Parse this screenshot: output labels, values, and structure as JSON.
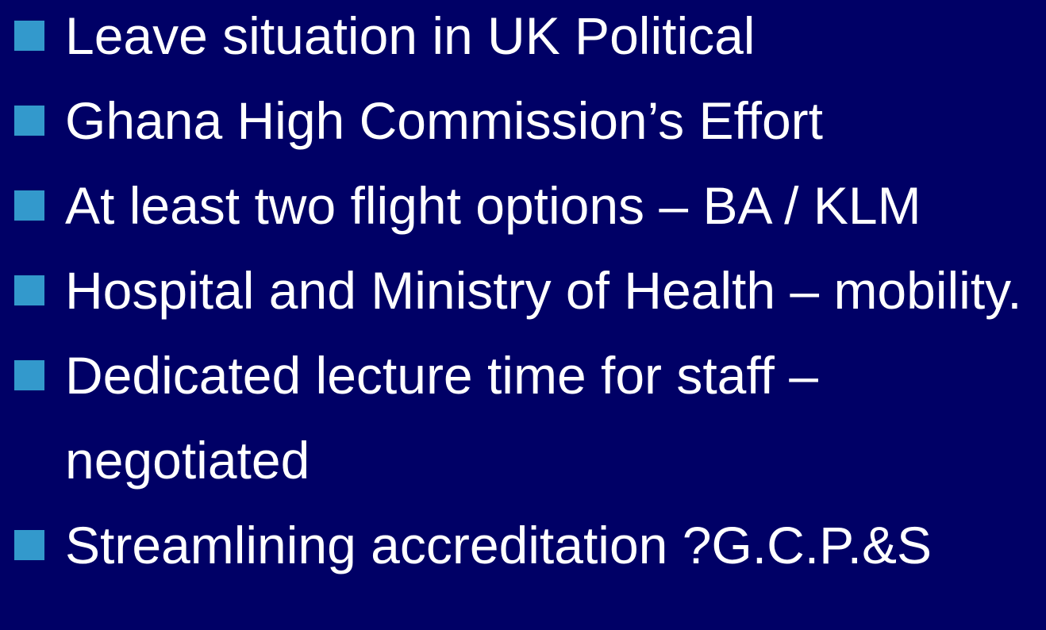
{
  "bullets": [
    "Leave situation in UK Political",
    "Ghana High Commission’s Effort",
    "At least two flight options – BA / KLM",
    "Hospital and Ministry of Health – mobility.",
    "Dedicated lecture time for staff – negotiated",
    "Streamlining accreditation ?G.C.P.&S"
  ]
}
